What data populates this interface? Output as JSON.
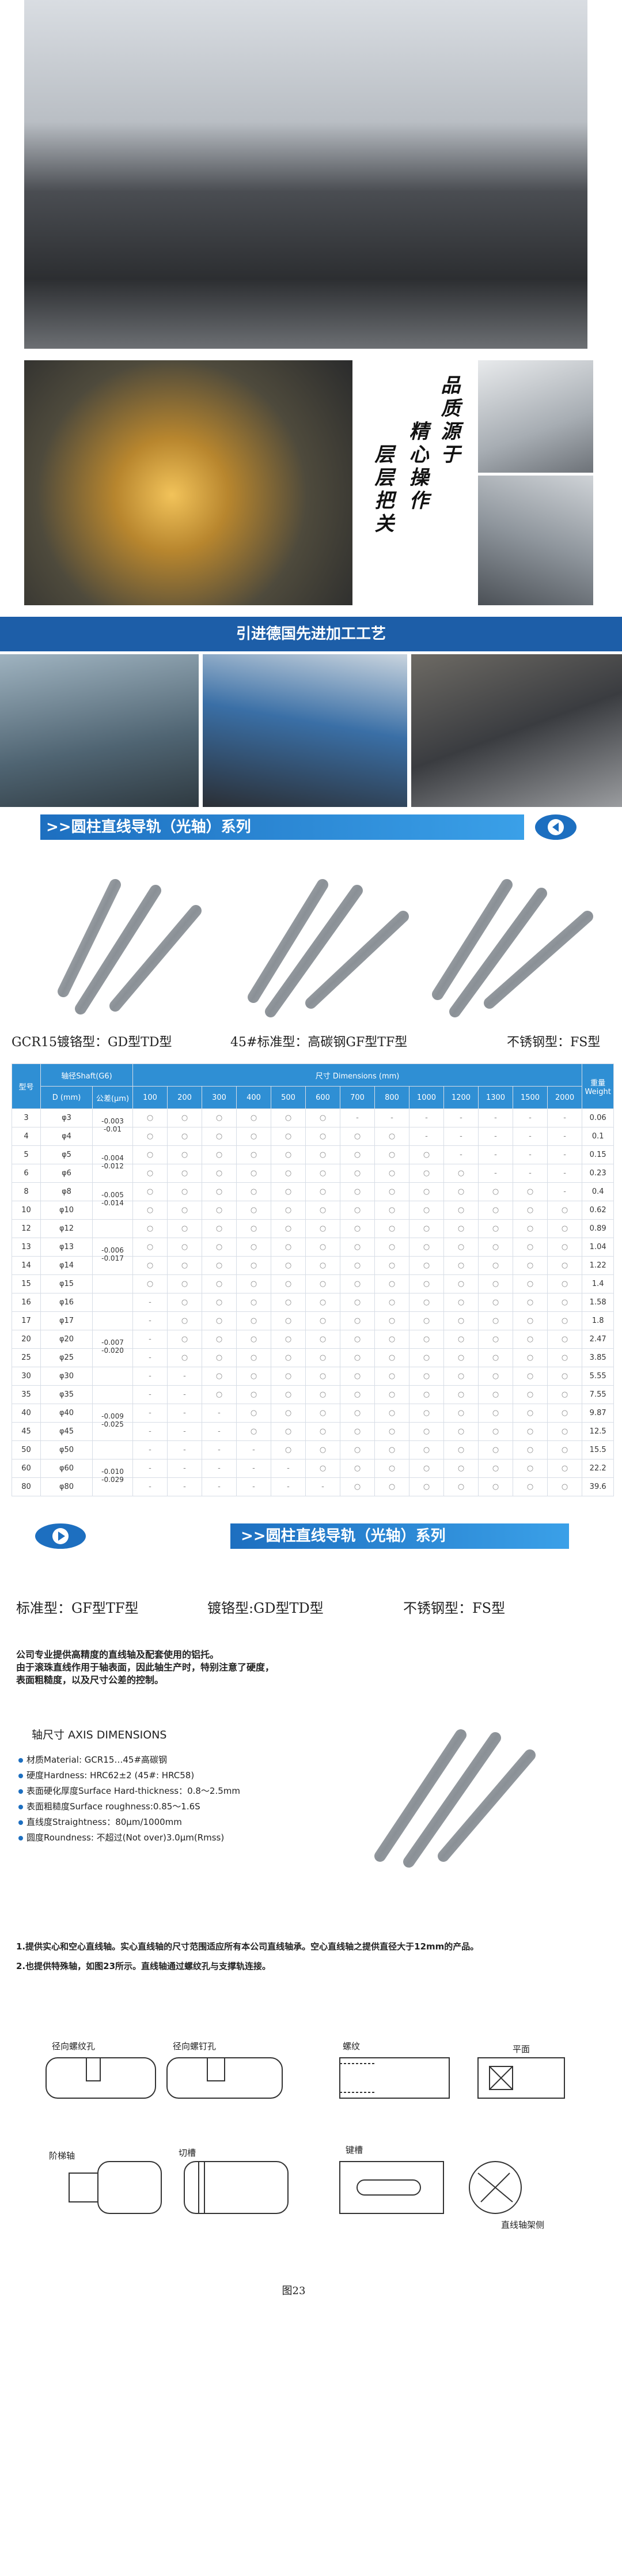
{
  "slogan": [
    "品质源于",
    "精心操作",
    "层层把关"
  ],
  "banner_process": "引进德国先进加工工艺",
  "banner_series": ">>圆柱直线导轨（光轴）系列",
  "types_top": [
    "GCR15镀铬型：GD型TD型",
    "45#标准型：高碳钢GF型TF型",
    "不锈钢型：FS型"
  ],
  "table": {
    "header": {
      "model": "型号",
      "shaft": "轴径Shaft(G6)",
      "dims": "尺寸 Dimensions (mm)",
      "weight": "重量Weight",
      "d": "D (mm)",
      "tol": "公差(μm)",
      "lengths": [
        "100",
        "200",
        "300",
        "400",
        "500",
        "600",
        "700",
        "800",
        "1000",
        "1200",
        "1300",
        "1500",
        "2000"
      ]
    },
    "rows": [
      {
        "model": "3",
        "d": "φ3",
        "tol": [
          "-0.003",
          "-0.01"
        ],
        "cells": [
          "○",
          "○",
          "○",
          "○",
          "○",
          "○",
          "-",
          "-",
          "-",
          "-",
          "-",
          "-",
          "-"
        ],
        "weight": "0.06"
      },
      {
        "model": "4",
        "d": "φ4",
        "tol": null,
        "cells": [
          "○",
          "○",
          "○",
          "○",
          "○",
          "○",
          "○",
          "○",
          "-",
          "-",
          "-",
          "-",
          "-"
        ],
        "weight": "0.1"
      },
      {
        "model": "5",
        "d": "φ5",
        "tol": [
          "-0.004",
          "-0.012"
        ],
        "cells": [
          "○",
          "○",
          "○",
          "○",
          "○",
          "○",
          "○",
          "○",
          "○",
          "-",
          "-",
          "-",
          "-"
        ],
        "weight": "0.15"
      },
      {
        "model": "6",
        "d": "φ6",
        "tol": null,
        "cells": [
          "○",
          "○",
          "○",
          "○",
          "○",
          "○",
          "○",
          "○",
          "○",
          "○",
          "-",
          "-",
          "-"
        ],
        "weight": "0.23"
      },
      {
        "model": "8",
        "d": "φ8",
        "tol": [
          "-0.005",
          "-0.014"
        ],
        "cells": [
          "○",
          "○",
          "○",
          "○",
          "○",
          "○",
          "○",
          "○",
          "○",
          "○",
          "○",
          "○",
          "-"
        ],
        "weight": "0.4"
      },
      {
        "model": "10",
        "d": "φ10",
        "tol": null,
        "cells": [
          "○",
          "○",
          "○",
          "○",
          "○",
          "○",
          "○",
          "○",
          "○",
          "○",
          "○",
          "○",
          "○"
        ],
        "weight": "0.62"
      },
      {
        "model": "12",
        "d": "φ12",
        "tol": null,
        "cells": [
          "○",
          "○",
          "○",
          "○",
          "○",
          "○",
          "○",
          "○",
          "○",
          "○",
          "○",
          "○",
          "○"
        ],
        "weight": "0.89"
      },
      {
        "model": "13",
        "d": "φ13",
        "tol": [
          "-0.006",
          "-0.017"
        ],
        "cells": [
          "○",
          "○",
          "○",
          "○",
          "○",
          "○",
          "○",
          "○",
          "○",
          "○",
          "○",
          "○",
          "○"
        ],
        "weight": "1.04"
      },
      {
        "model": "14",
        "d": "φ14",
        "tol": null,
        "cells": [
          "○",
          "○",
          "○",
          "○",
          "○",
          "○",
          "○",
          "○",
          "○",
          "○",
          "○",
          "○",
          "○"
        ],
        "weight": "1.22"
      },
      {
        "model": "15",
        "d": "φ15",
        "tol": null,
        "cells": [
          "○",
          "○",
          "○",
          "○",
          "○",
          "○",
          "○",
          "○",
          "○",
          "○",
          "○",
          "○",
          "○"
        ],
        "weight": "1.4"
      },
      {
        "model": "16",
        "d": "φ16",
        "tol": null,
        "cells": [
          "-",
          "○",
          "○",
          "○",
          "○",
          "○",
          "○",
          "○",
          "○",
          "○",
          "○",
          "○",
          "○"
        ],
        "weight": "1.58"
      },
      {
        "model": "17",
        "d": "φ17",
        "tol": null,
        "cells": [
          "-",
          "○",
          "○",
          "○",
          "○",
          "○",
          "○",
          "○",
          "○",
          "○",
          "○",
          "○",
          "○"
        ],
        "weight": "1.8"
      },
      {
        "model": "20",
        "d": "φ20",
        "tol": [
          "-0.007",
          "-0.020"
        ],
        "cells": [
          "-",
          "○",
          "○",
          "○",
          "○",
          "○",
          "○",
          "○",
          "○",
          "○",
          "○",
          "○",
          "○"
        ],
        "weight": "2.47"
      },
      {
        "model": "25",
        "d": "φ25",
        "tol": null,
        "cells": [
          "-",
          "○",
          "○",
          "○",
          "○",
          "○",
          "○",
          "○",
          "○",
          "○",
          "○",
          "○",
          "○"
        ],
        "weight": "3.85"
      },
      {
        "model": "30",
        "d": "φ30",
        "tol": null,
        "cells": [
          "-",
          "-",
          "○",
          "○",
          "○",
          "○",
          "○",
          "○",
          "○",
          "○",
          "○",
          "○",
          "○"
        ],
        "weight": "5.55"
      },
      {
        "model": "35",
        "d": "φ35",
        "tol": null,
        "cells": [
          "-",
          "-",
          "○",
          "○",
          "○",
          "○",
          "○",
          "○",
          "○",
          "○",
          "○",
          "○",
          "○"
        ],
        "weight": "7.55"
      },
      {
        "model": "40",
        "d": "φ40",
        "tol": [
          "-0.009",
          "-0.025"
        ],
        "cells": [
          "-",
          "-",
          "-",
          "○",
          "○",
          "○",
          "○",
          "○",
          "○",
          "○",
          "○",
          "○",
          "○"
        ],
        "weight": "9.87"
      },
      {
        "model": "45",
        "d": "φ45",
        "tol": null,
        "cells": [
          "-",
          "-",
          "-",
          "○",
          "○",
          "○",
          "○",
          "○",
          "○",
          "○",
          "○",
          "○",
          "○"
        ],
        "weight": "12.5"
      },
      {
        "model": "50",
        "d": "φ50",
        "tol": null,
        "cells": [
          "-",
          "-",
          "-",
          "-",
          "○",
          "○",
          "○",
          "○",
          "○",
          "○",
          "○",
          "○",
          "○"
        ],
        "weight": "15.5"
      },
      {
        "model": "60",
        "d": "φ60",
        "tol": [
          "-0.010",
          "-0.029"
        ],
        "cells": [
          "-",
          "-",
          "-",
          "-",
          "-",
          "○",
          "○",
          "○",
          "○",
          "○",
          "○",
          "○",
          "○"
        ],
        "weight": "22.2"
      },
      {
        "model": "80",
        "d": "φ80",
        "tol": null,
        "cells": [
          "-",
          "-",
          "-",
          "-",
          "-",
          "-",
          "○",
          "○",
          "○",
          "○",
          "○",
          "○",
          "○"
        ],
        "weight": "39.6"
      }
    ]
  },
  "types_bottom": [
    "标准型：GF型TF型",
    "镀铬型:GD型TD型",
    "不锈钢型：FS型"
  ],
  "intro": [
    "公司专业提供高精度的直线轴及配套使用的铝托。",
    "由于滚珠直线作用于轴表面，因此轴生产时，特别注意了硬度，",
    "表面粗糙度，以及尺寸公差的控制。"
  ],
  "specs_title": "轴尺寸  AXIS DIMENSIONS",
  "specs": [
    "材质Material:  GCR15…45#高碳钢",
    "硬度Hardness:  HRC62±2 (45#: HRC58)",
    "表面硬化厚度Surface Hard-thickness：0.8～2.5mm",
    "表面粗糙度Surface roughness:0.85～1.6S",
    "直线度Straightness：80μm/1000mm",
    "圆度Roundness:  不超过(Not over)3.0μm(Rmss)"
  ],
  "notes": [
    "1.提供实心和空心直线轴。实心直线轴的尺寸范围适应所有本公司直线轴承。空心直线轴之提供直径大于12mm的产品。",
    "2.也提供特殊轴，如图23所示。直线轴通过螺纹孔与支撑轨连接。"
  ],
  "diagram": {
    "labels": [
      "径向螺纹孔",
      "径向螺钉孔",
      "螺纹",
      "平面",
      "阶梯轴",
      "切槽",
      "键槽",
      "直线轴架侧"
    ],
    "caption": "图23"
  }
}
